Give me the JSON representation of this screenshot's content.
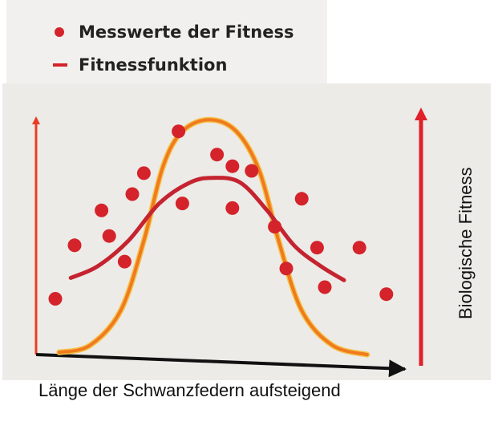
{
  "chart_data": {
    "type": "scatter",
    "legend": {
      "placement": "top-left",
      "entries": [
        {
          "label": "Messwerte der Fitness",
          "marker": "dot"
        },
        {
          "label": "Fitnessfunktion",
          "marker": "line"
        }
      ]
    },
    "xlabel": "Länge der Schwanzfedern aufsteigend",
    "ylabel": "Biologische Fitness",
    "xlim": [
      0,
      100
    ],
    "ylim": [
      0,
      100
    ],
    "grid": false,
    "series": [
      {
        "kind": "points",
        "color": "#d4232b",
        "points": [
          {
            "x": 5,
            "y": 25
          },
          {
            "x": 10,
            "y": 48
          },
          {
            "x": 17,
            "y": 63
          },
          {
            "x": 19,
            "y": 52
          },
          {
            "x": 23,
            "y": 41
          },
          {
            "x": 25,
            "y": 70
          },
          {
            "x": 28,
            "y": 79
          },
          {
            "x": 37,
            "y": 97
          },
          {
            "x": 38,
            "y": 66
          },
          {
            "x": 47,
            "y": 87
          },
          {
            "x": 51,
            "y": 82
          },
          {
            "x": 51,
            "y": 64
          },
          {
            "x": 56,
            "y": 80
          },
          {
            "x": 62,
            "y": 56
          },
          {
            "x": 65,
            "y": 38
          },
          {
            "x": 69,
            "y": 68
          },
          {
            "x": 73,
            "y": 47
          },
          {
            "x": 75,
            "y": 30
          },
          {
            "x": 84,
            "y": 47
          },
          {
            "x": 91,
            "y": 27
          }
        ]
      },
      {
        "kind": "curve",
        "color": "#c52330",
        "points": [
          {
            "x": 9,
            "y": 34
          },
          {
            "x": 16,
            "y": 39
          },
          {
            "x": 24,
            "y": 50
          },
          {
            "x": 32,
            "y": 66
          },
          {
            "x": 40,
            "y": 75
          },
          {
            "x": 46,
            "y": 77
          },
          {
            "x": 53,
            "y": 75
          },
          {
            "x": 60,
            "y": 63
          },
          {
            "x": 67,
            "y": 48
          },
          {
            "x": 74,
            "y": 39
          },
          {
            "x": 80,
            "y": 33
          }
        ]
      },
      {
        "kind": "curve",
        "color": "#f07a1e",
        "points": [
          {
            "x": 6,
            "y": 2
          },
          {
            "x": 14,
            "y": 5
          },
          {
            "x": 22,
            "y": 20
          },
          {
            "x": 28,
            "y": 50
          },
          {
            "x": 33,
            "y": 82
          },
          {
            "x": 38,
            "y": 97
          },
          {
            "x": 45,
            "y": 102
          },
          {
            "x": 52,
            "y": 97
          },
          {
            "x": 58,
            "y": 80
          },
          {
            "x": 63,
            "y": 50
          },
          {
            "x": 69,
            "y": 20
          },
          {
            "x": 77,
            "y": 5
          },
          {
            "x": 86,
            "y": 1
          }
        ]
      }
    ]
  }
}
